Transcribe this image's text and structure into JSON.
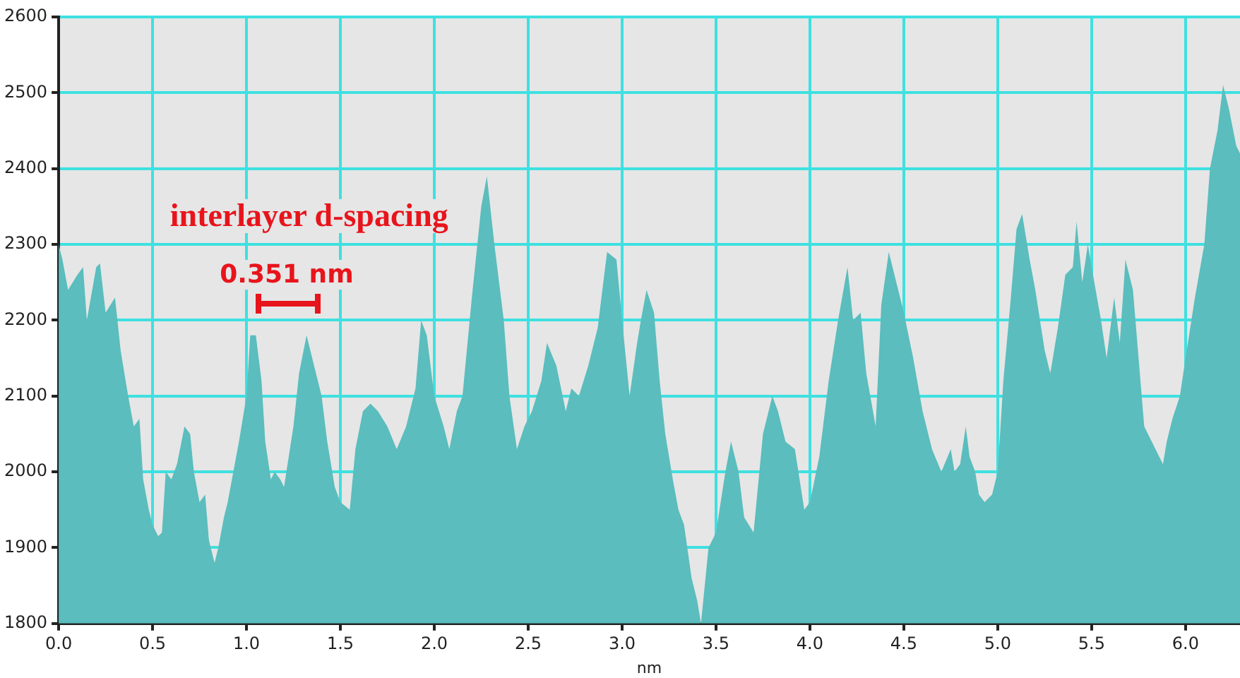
{
  "chart_data": {
    "type": "area",
    "xlabel": "nm",
    "color": "#5bbdbd",
    "grid": true,
    "legend": false,
    "marker": "none",
    "xlim": [
      0,
      6.29
    ],
    "xticks": [
      {
        "value": 0,
        "label": "0.0"
      },
      {
        "value": 0.5,
        "label": "0.5"
      },
      {
        "value": 1,
        "label": "1.0"
      },
      {
        "value": 1.5,
        "label": "1.5"
      },
      {
        "value": 2,
        "label": "2.0"
      },
      {
        "value": 2.5,
        "label": "2.5"
      },
      {
        "value": 3,
        "label": "3.0"
      },
      {
        "value": 3.5,
        "label": "3.5"
      },
      {
        "value": 4,
        "label": "4.0"
      },
      {
        "value": 4.5,
        "label": "4.5"
      },
      {
        "value": 5,
        "label": "5.0"
      },
      {
        "value": 5.5,
        "label": "5.5"
      },
      {
        "value": 6,
        "label": "6.0"
      }
    ],
    "ylim": [
      1800,
      2600
    ],
    "yticks": [
      1800,
      1900,
      2000,
      2100,
      2200,
      2300,
      2400,
      2500,
      2600
    ],
    "x": [
      0,
      0.02,
      0.05,
      0.1,
      0.13,
      0.15,
      0.2,
      0.22,
      0.25,
      0.3,
      0.33,
      0.37,
      0.4,
      0.43,
      0.45,
      0.48,
      0.5,
      0.53,
      0.55,
      0.57,
      0.6,
      0.63,
      0.67,
      0.7,
      0.72,
      0.75,
      0.78,
      0.8,
      0.83,
      0.85,
      0.88,
      0.9,
      0.93,
      0.96,
      1.0,
      1.02,
      1.05,
      1.08,
      1.1,
      1.13,
      1.15,
      1.18,
      1.2,
      1.25,
      1.28,
      1.32,
      1.35,
      1.4,
      1.43,
      1.47,
      1.5,
      1.55,
      1.58,
      1.62,
      1.66,
      1.7,
      1.75,
      1.8,
      1.85,
      1.9,
      1.93,
      1.96,
      2.0,
      2.05,
      2.08,
      2.12,
      2.15,
      2.2,
      2.25,
      2.28,
      2.32,
      2.37,
      2.4,
      2.44,
      2.48,
      2.52,
      2.57,
      2.6,
      2.65,
      2.7,
      2.73,
      2.77,
      2.82,
      2.87,
      2.92,
      2.97,
      3.0,
      3.04,
      3.08,
      3.1,
      3.13,
      3.17,
      3.2,
      3.23,
      3.27,
      3.3,
      3.33,
      3.37,
      3.4,
      3.42,
      3.46,
      3.5,
      3.55,
      3.58,
      3.62,
      3.65,
      3.7,
      3.75,
      3.8,
      3.83,
      3.87,
      3.92,
      3.97,
      4.0,
      4.05,
      4.1,
      4.15,
      4.2,
      4.23,
      4.27,
      4.3,
      4.35,
      4.38,
      4.42,
      4.45,
      4.5,
      4.55,
      4.6,
      4.65,
      4.7,
      4.75,
      4.77,
      4.8,
      4.83,
      4.85,
      4.88,
      4.9,
      4.93,
      4.97,
      5.0,
      5.03,
      5.07,
      5.1,
      5.13,
      5.17,
      5.2,
      5.25,
      5.28,
      5.32,
      5.36,
      5.4,
      5.42,
      5.45,
      5.48,
      5.5,
      5.55,
      5.58,
      5.62,
      5.65,
      5.68,
      5.72,
      5.75,
      5.78,
      5.82,
      5.86,
      5.88,
      5.9,
      5.93,
      5.97,
      6.0,
      6.05,
      6.1,
      6.13,
      6.17,
      6.2,
      6.23,
      6.27,
      6.29
    ],
    "values": [
      2300,
      2280,
      2240,
      2260,
      2270,
      2200,
      2270,
      2275,
      2210,
      2230,
      2160,
      2100,
      2060,
      2070,
      1990,
      1950,
      1930,
      1915,
      1920,
      2000,
      1990,
      2010,
      2060,
      2050,
      2000,
      1960,
      1970,
      1910,
      1880,
      1900,
      1940,
      1960,
      2000,
      2040,
      2100,
      2180,
      2180,
      2120,
      2040,
      1990,
      2000,
      1990,
      1980,
      2060,
      2130,
      2180,
      2150,
      2100,
      2040,
      1980,
      1960,
      1950,
      2030,
      2080,
      2090,
      2080,
      2060,
      2030,
      2060,
      2110,
      2200,
      2180,
      2100,
      2060,
      2030,
      2080,
      2100,
      2230,
      2350,
      2390,
      2300,
      2200,
      2100,
      2030,
      2060,
      2080,
      2120,
      2170,
      2140,
      2080,
      2110,
      2100,
      2140,
      2190,
      2290,
      2280,
      2200,
      2100,
      2170,
      2200,
      2240,
      2210,
      2120,
      2050,
      1990,
      1950,
      1930,
      1860,
      1830,
      1800,
      1900,
      1920,
      2000,
      2040,
      2000,
      1940,
      1920,
      2050,
      2100,
      2080,
      2040,
      2030,
      1950,
      1960,
      2020,
      2120,
      2200,
      2270,
      2200,
      2210,
      2130,
      2060,
      2220,
      2290,
      2260,
      2210,
      2150,
      2080,
      2030,
      2000,
      2030,
      2000,
      2010,
      2060,
      2020,
      2000,
      1970,
      1960,
      1970,
      2000,
      2120,
      2230,
      2320,
      2340,
      2280,
      2240,
      2160,
      2130,
      2190,
      2260,
      2270,
      2330,
      2250,
      2300,
      2270,
      2200,
      2150,
      2230,
      2170,
      2280,
      2240,
      2150,
      2060,
      2040,
      2020,
      2010,
      2040,
      2070,
      2100,
      2150,
      2230,
      2300,
      2400,
      2450,
      2510,
      2480,
      2430,
      2420
    ],
    "annotations": [
      "interlayer d-spacing",
      "0.351 nm"
    ]
  }
}
